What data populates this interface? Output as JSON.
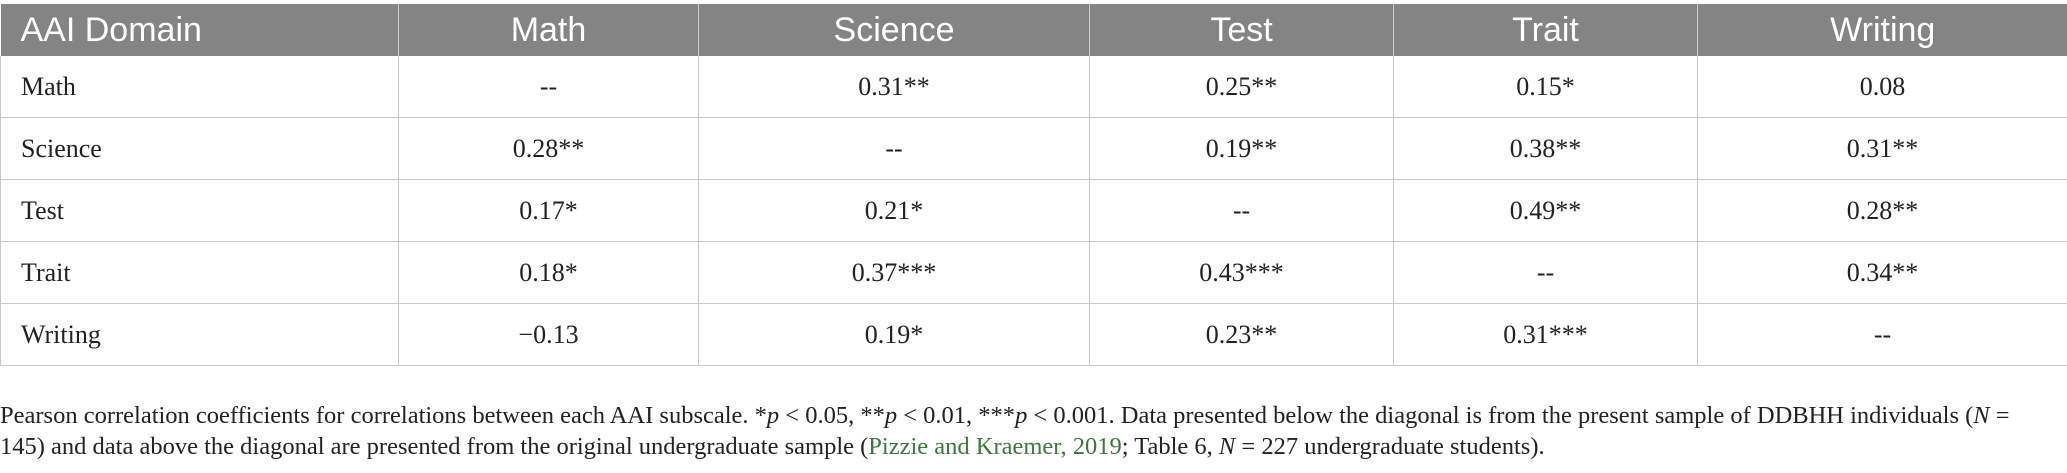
{
  "table": {
    "columns": [
      "AAI Domain",
      "Math",
      "Science",
      "Test",
      "Trait",
      "Writing"
    ],
    "rows": [
      {
        "label": "Math",
        "values": [
          "--",
          "0.31**",
          "0.25**",
          "0.15*",
          "0.08"
        ]
      },
      {
        "label": "Science",
        "values": [
          "0.28**",
          "--",
          "0.19**",
          "0.38**",
          "0.31**"
        ]
      },
      {
        "label": "Test",
        "values": [
          "0.17*",
          "0.21*",
          "--",
          "0.49**",
          "0.28**"
        ]
      },
      {
        "label": "Trait",
        "values": [
          "0.18*",
          "0.37***",
          "0.43***",
          "--",
          "0.34**"
        ]
      },
      {
        "label": "Writing",
        "values": [
          "−0.13",
          "0.19*",
          "0.23**",
          "0.31***",
          "--"
        ]
      }
    ]
  },
  "note": {
    "part1": "Pearson correlation coefficients for correlations between each AAI subscale. *",
    "p1": "p",
    "part2": " < 0.05, **",
    "p2": "p",
    "part3": " < 0.01, ***",
    "p3": "p",
    "part4": " < 0.001. Data presented below the diagonal is from the present sample of DDBHH individuals (",
    "n1": "N",
    "part5": " = 145) and data above the diagonal are presented from the original undergraduate sample (",
    "citation": "Pizzie and Kraemer, 2019",
    "part6": "; Table 6, ",
    "n2": "N",
    "part7": " = 227 undergraduate students)."
  },
  "colors": {
    "header_bg": "#848484",
    "header_text": "#ffffff",
    "citation_link": "#3b7a3b"
  }
}
